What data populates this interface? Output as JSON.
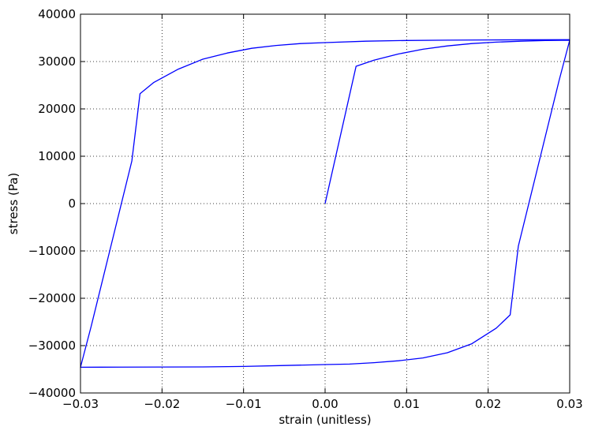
{
  "chart_data": {
    "type": "line",
    "title": "",
    "xlabel": "strain (unitless)",
    "ylabel": "stress (Pa)",
    "xlim": [
      -0.03,
      0.03
    ],
    "ylim": [
      -40000,
      40000
    ],
    "xticks": [
      -0.03,
      -0.02,
      -0.01,
      0.0,
      0.01,
      0.02,
      0.03
    ],
    "xtick_labels": [
      "−0.03",
      "−0.02",
      "−0.01",
      "0.00",
      "0.01",
      "0.02",
      "0.03"
    ],
    "yticks": [
      -40000,
      -30000,
      -20000,
      -10000,
      0,
      10000,
      20000,
      30000,
      40000
    ],
    "ytick_labels": [
      "−40000",
      "−30000",
      "−20000",
      "−10000",
      "0",
      "10000",
      "20000",
      "30000",
      "40000"
    ],
    "grid": true,
    "line_color": "#0000ff",
    "series": [
      {
        "x": [
          0.0,
          0.0038,
          0.006,
          0.009,
          0.012,
          0.015,
          0.018,
          0.021,
          0.024,
          0.027,
          0.03,
          0.0287,
          0.0277,
          0.0267,
          0.0257,
          0.0247,
          0.0237,
          0.0227,
          0.021,
          0.018,
          0.015,
          0.012,
          0.009,
          0.006,
          0.003,
          0.0,
          -0.005,
          -0.01,
          -0.015,
          -0.02,
          -0.025,
          -0.03,
          -0.0287,
          -0.0277,
          -0.0267,
          -0.0257,
          -0.0247,
          -0.0237,
          -0.0227,
          -0.021,
          -0.018,
          -0.015,
          -0.012,
          -0.009,
          -0.006,
          -0.003,
          0.0,
          0.005,
          0.01,
          0.015,
          0.02,
          0.025,
          0.03
        ],
        "y": [
          0,
          29000,
          30300,
          31600,
          32600,
          33300,
          33800,
          34100,
          34300,
          34450,
          34500,
          26000,
          19000,
          12000,
          5000,
          -2000,
          -9000,
          -23500,
          -26300,
          -29600,
          -31500,
          -32600,
          -33200,
          -33600,
          -33900,
          -34000,
          -34200,
          -34400,
          -34500,
          -34520,
          -34540,
          -34560,
          -26000,
          -19000,
          -12000,
          -5000,
          2000,
          9000,
          23200,
          25600,
          28400,
          30500,
          31800,
          32800,
          33400,
          33800,
          34000,
          34300,
          34450,
          34520,
          34560,
          34600,
          34620
        ]
      }
    ]
  }
}
